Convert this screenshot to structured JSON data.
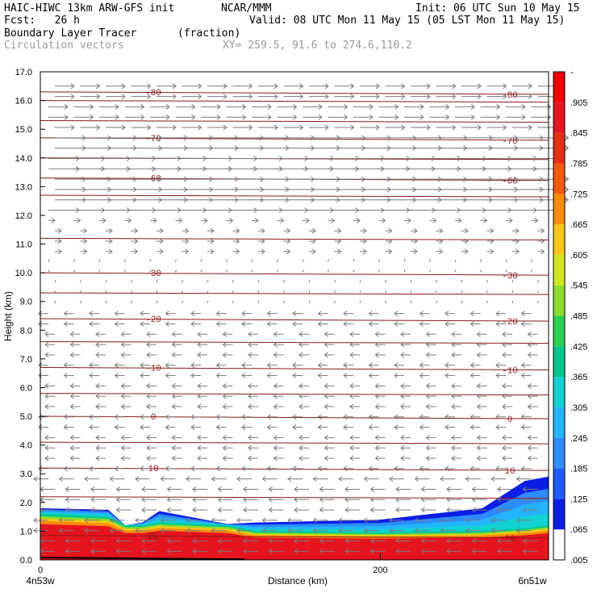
{
  "header": {
    "line1_left": "HAIC-HIWC 13km ARW-GFS init",
    "line1_mid": "NCAR/MMM",
    "line1_right": "Init: 06 UTC Sun 10 May 15",
    "line2_left": "Fcst:   26 h",
    "line2_right": "Valid: 08 UTC Mon 11 May 15 (05 LST Mon 11 May 15)",
    "line3_field": "Boundary Layer Tracer",
    "line3_units": "(fraction)",
    "line4_field": "Circulation vectors",
    "line4_xy": "XY= 259.5, 91.6 to 274.6,110.2"
  },
  "colors": {
    "contour": "#8b1a1a",
    "vector": "#7a7a7a",
    "colorbar": [
      "#ffffff",
      "#0a1ee6",
      "#1e5aff",
      "#2d8cff",
      "#23b4ff",
      "#10d2d2",
      "#00c88c",
      "#28d250",
      "#8cdc2d",
      "#d2e61e",
      "#fac814",
      "#fa8c0a",
      "#f55a0a",
      "#e62d14",
      "#e6141e",
      "#f00000"
    ]
  },
  "chart_data": {
    "type": "cross-section",
    "title": "Boundary Layer Tracer",
    "units": "(fraction)",
    "xlabel": "Distance (km)",
    "ylabel": "Height (km)",
    "x_tick_labels": [
      "0",
      "200"
    ],
    "x_ticks": [
      0,
      200
    ],
    "xlim": [
      0,
      299
    ],
    "x_end_labels": [
      "4n53w",
      "6n51w"
    ],
    "y_ticks": [
      "0.0",
      "1.0",
      "2.0",
      "3.0",
      "4.0",
      "5.0",
      "6.0",
      "7.0",
      "8.0",
      "9.0",
      "10.0",
      "11.0",
      "12.0",
      "13.0",
      "14.0",
      "15.0",
      "16.0",
      "17.0"
    ],
    "ylim": [
      0,
      17
    ],
    "colorbar_labels": [
      ".005",
      ".065",
      ".125",
      ".185",
      ".245",
      ".305",
      ".365",
      ".425",
      ".485",
      ".545",
      ".605",
      ".665",
      ".725",
      ".785",
      ".845",
      ".905",
      "-"
    ],
    "tracer_top_km": [
      {
        "x": 0,
        "top": 1.8,
        "inner": 1.6
      },
      {
        "x": 40,
        "top": 1.75,
        "inner": 1.5
      },
      {
        "x": 50,
        "top": 1.2,
        "inner": 1.2
      },
      {
        "x": 60,
        "top": 1.3,
        "inner": 1.2
      },
      {
        "x": 70,
        "top": 1.7,
        "inner": 1.3
      },
      {
        "x": 110,
        "top": 1.25,
        "inner": 1.2
      },
      {
        "x": 126,
        "top": 1.3,
        "inner": 1.0
      },
      {
        "x": 200,
        "top": 1.4,
        "inner": 0.95
      },
      {
        "x": 260,
        "top": 1.8,
        "inner": 1.0
      },
      {
        "x": 285,
        "top": 2.75,
        "inner": 1.1
      },
      {
        "x": 299,
        "top": 2.9,
        "inner": 1.2
      }
    ],
    "temperature_contours": [
      {
        "label": "-80",
        "y": 16.3
      },
      {
        "label": "-70",
        "y": 14.7
      },
      {
        "label": "-60",
        "y": 13.3
      },
      {
        "label": "-30",
        "y": 10.0
      },
      {
        "label": "-20",
        "y": 8.4
      },
      {
        "label": "-10",
        "y": 6.7
      },
      {
        "label": "0",
        "y": 5.0
      },
      {
        "label": "10",
        "y": 3.2
      },
      {
        "label": "20",
        "y": 0.85
      }
    ],
    "unlabeled_contours_km": [
      16.0,
      15.3,
      14.0,
      12.7,
      11.2,
      9.3,
      7.6,
      5.8,
      4.1,
      2.2
    ]
  }
}
